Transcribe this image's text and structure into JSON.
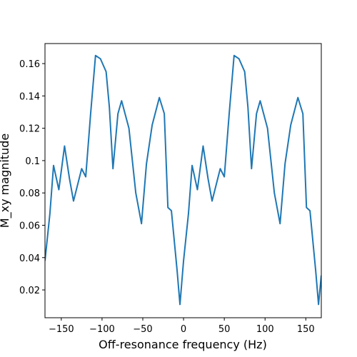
{
  "chart_data": {
    "type": "line",
    "x_label": "Off-resonance frequency (Hz)",
    "y_label": "M_xy magnitude",
    "x": [
      -170,
      -164,
      -159.5,
      -153,
      -146,
      -140,
      -135,
      -125,
      -120,
      -114,
      -108,
      -102,
      -95,
      -91,
      -86.6,
      -80.5,
      -76,
      -67,
      -58.6,
      -51.6,
      -45.5,
      -38.5,
      -29.7,
      -23.6,
      -19.2,
      -14.9,
      -7.9,
      -4.4,
      0,
      6,
      10.5,
      17,
      24,
      30,
      35,
      45,
      50,
      56,
      62,
      68,
      75,
      79,
      83.4,
      89.5,
      94,
      103,
      111.4,
      118.4,
      124.5,
      131.5,
      140.3,
      146.4,
      150.8,
      155.1,
      162.1,
      165.6,
      169
    ],
    "series": [
      {
        "name": "M_xy",
        "color": "#1f77b4",
        "values": [
          0.038,
          0.067,
          0.097,
          0.082,
          0.109,
          0.089,
          0.075,
          0.095,
          0.09,
          0.129,
          0.165,
          0.163,
          0.155,
          0.133,
          0.095,
          0.129,
          0.137,
          0.12,
          0.08,
          0.061,
          0.098,
          0.122,
          0.139,
          0.129,
          0.071,
          0.069,
          0.032,
          0.011,
          0.038,
          0.067,
          0.097,
          0.082,
          0.109,
          0.089,
          0.075,
          0.095,
          0.09,
          0.129,
          0.165,
          0.163,
          0.155,
          0.133,
          0.095,
          0.129,
          0.137,
          0.12,
          0.08,
          0.061,
          0.098,
          0.122,
          0.139,
          0.129,
          0.071,
          0.069,
          0.032,
          0.011,
          0.029
        ]
      }
    ],
    "xlim": [
      -170,
      169
    ],
    "ylim": [
      0.0028,
      0.1724
    ],
    "xticks": [
      {
        "value": -150,
        "label": "−150"
      },
      {
        "value": -100,
        "label": "−100"
      },
      {
        "value": -50,
        "label": "−50"
      },
      0,
      50,
      100,
      150
    ],
    "yticks": [
      0.02,
      0.04,
      0.06,
      0.08,
      0.1,
      0.12,
      0.14,
      0.16
    ],
    "grid": false
  }
}
